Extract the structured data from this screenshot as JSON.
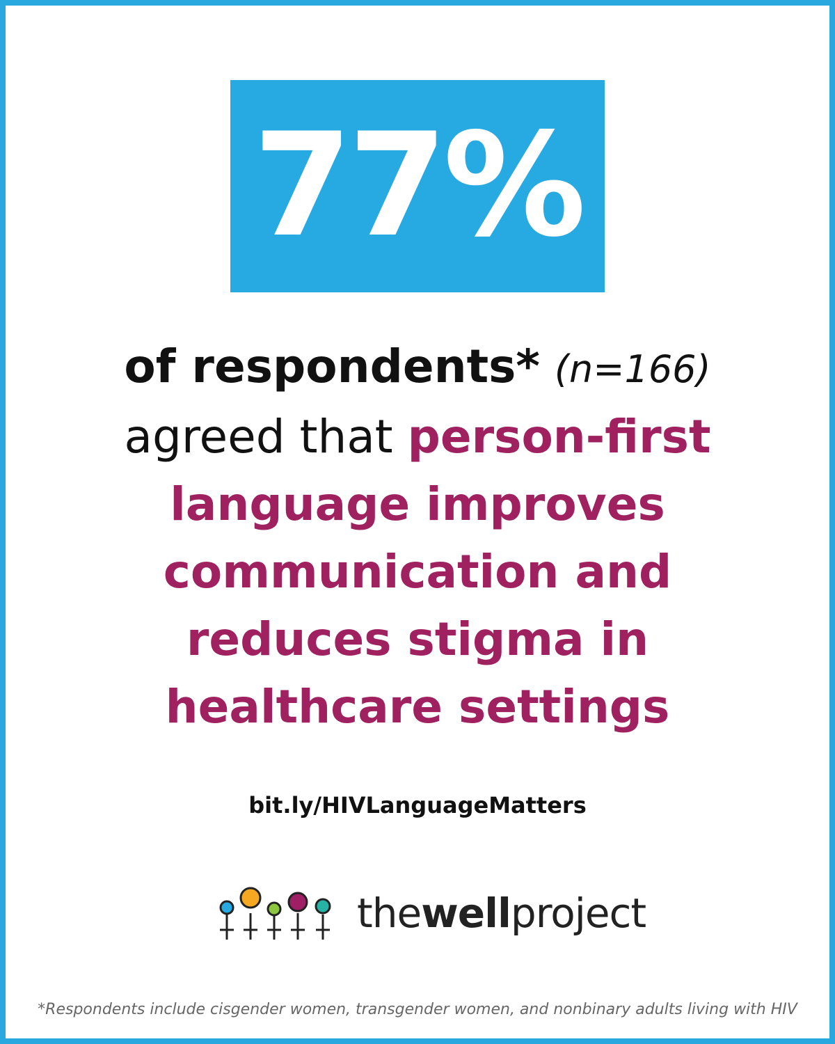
{
  "stat": "77%",
  "statement": {
    "respondents": "of respondents*",
    "sample": "(n=166)",
    "agreed": "agreed that",
    "highlight": [
      "person-first",
      "language improves",
      "communication and",
      "reduces stigma in",
      "healthcare settings"
    ]
  },
  "link": "bit.ly/HIVLanguageMatters",
  "logo": {
    "the": "the",
    "well": "well",
    "project": "project"
  },
  "footnote": "*Respondents include cisgender women, transgender women, and nonbinary adults living with HIV"
}
